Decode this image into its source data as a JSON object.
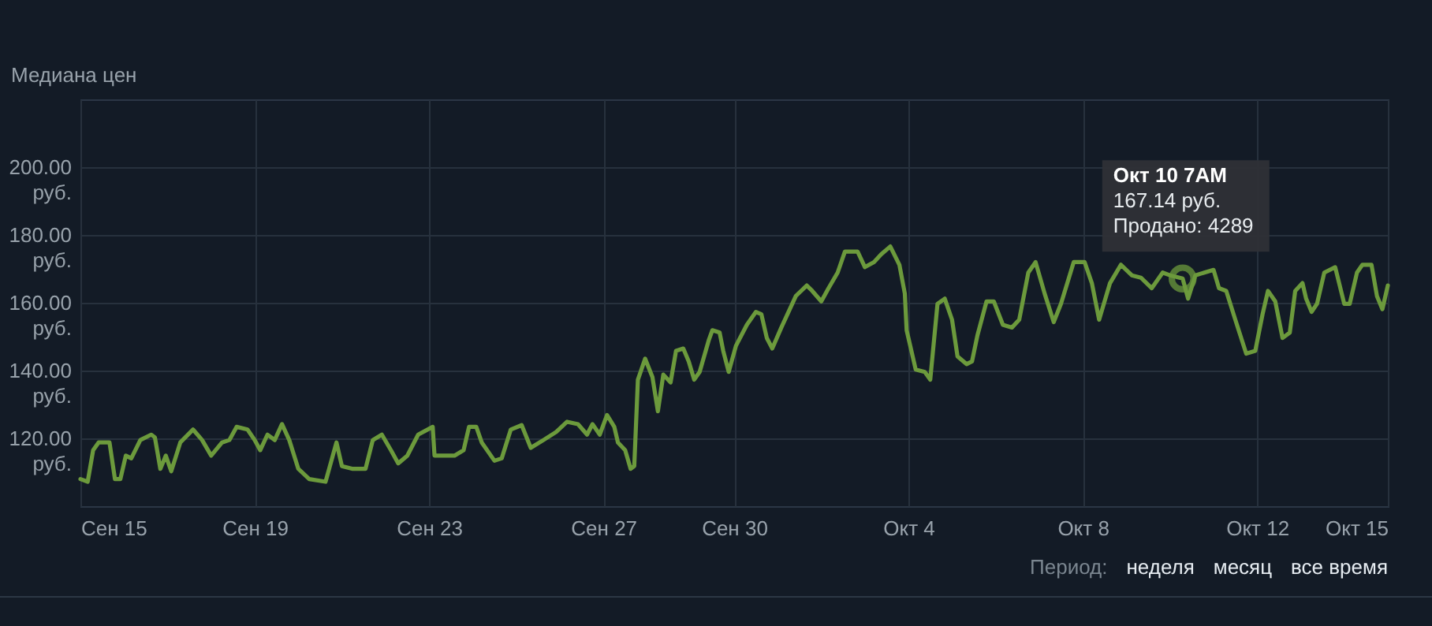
{
  "chart_data": {
    "type": "line",
    "title": "Медиана цен",
    "annotations": [
      {
        "text": "Окт 10 7AM\n167.14 руб.\nПродано: 4289",
        "x": "--10-10T07:00",
        "y": 167.14
      },
      "Период:",
      "неделя",
      "месяц",
      "все время"
    ],
    "x": [
      "--09-15T00:00",
      "--09-15T04:00",
      "--09-15T07:00",
      "--09-15T10:00",
      "--09-15T16:00",
      "--09-15T19:00",
      "--09-15T22:00",
      "--09-16T01:00",
      "--09-16T04:00",
      "--09-16T09:00",
      "--09-16T15:00",
      "--09-16T17:00",
      "--09-16T20:00",
      "--09-16T23:00",
      "--09-17T02:00",
      "--09-17T07:00",
      "--09-17T14:00",
      "--09-17T19:00",
      "--09-18T00:00",
      "--09-18T06:00",
      "--09-18T10:00",
      "--09-18T14:00",
      "--09-18T20:00",
      "--09-19T00:00",
      "--09-19T03:00",
      "--09-19T07:00",
      "--09-19T11:00",
      "--09-19T15:00",
      "--09-19T19:00",
      "--09-20T00:00",
      "--09-20T06:00",
      "--09-20T15:00",
      "--09-20T21:00",
      "--09-21T00:00",
      "--09-21T06:00",
      "--09-21T13:00",
      "--09-21T17:00",
      "--09-21T22:00",
      "--09-22T03:00",
      "--09-22T07:00",
      "--09-22T12:00",
      "--09-22T18:00",
      "--09-23T02:00",
      "--09-23T03:00",
      "--09-23T14:00",
      "--09-23T19:00",
      "--09-23T22:00",
      "--09-24T02:00",
      "--09-24T05:00",
      "--09-24T12:00",
      "--09-24T16:00",
      "--09-24T21:00",
      "--09-25T03:00",
      "--09-25T08:00",
      "--09-25T15:00",
      "--09-25T22:00",
      "--09-26T04:00",
      "--09-26T10:00",
      "--09-26T15:00",
      "--09-26T18:00",
      "--09-26T22:00",
      "--09-27T02:00",
      "--09-27T06:00",
      "--09-27T08:00",
      "--09-27T12:00",
      "--09-27T15:00",
      "--09-27T17:00",
      "--09-27T19:00",
      "--09-27T23:00",
      "--09-28T03:00",
      "--09-28T06:00",
      "--09-28T09:00",
      "--09-28T13:00",
      "--09-28T16:00",
      "--09-28T20:00",
      "--09-28T23:00",
      "--09-29T02:00",
      "--09-29T05:00",
      "--09-29T10:00",
      "--09-29T12:00",
      "--09-29T16:00",
      "--09-29T18:00",
      "--09-29T21:00",
      "--09-30T01:00",
      "--09-30T07:00",
      "--09-30T12:00",
      "--09-30T15:00",
      "--09-30T18:00",
      "--09-30T21:00",
      "--10-01T02:00",
      "--10-01T10:00",
      "--10-01T16:00",
      "--10-01T19:00",
      "--10-02T00:00",
      "--10-02T04:00",
      "--10-02T09:00",
      "--10-02T13:00",
      "--10-02T20:00",
      "--10-03T00:00",
      "--10-03T05:00",
      "--10-03T09:00",
      "--10-03T14:00",
      "--10-03T19:00",
      "--10-03T22:00",
      "--10-03T23:00",
      "--10-04T04:00",
      "--10-04T09:00",
      "--10-04T12:00",
      "--10-04T16:00",
      "--10-04T20:00",
      "--10-05T00:00",
      "--10-05T03:00",
      "--10-05T08:00",
      "--10-05T11:00",
      "--10-05T14:00",
      "--10-05T19:00",
      "--10-05T23:00",
      "--10-06T04:00",
      "--10-06T09:00",
      "--10-06T13:00",
      "--10-06T18:00",
      "--10-06T22:00",
      "--10-07T03:00",
      "--10-07T08:00",
      "--10-07T12:00",
      "--10-07T19:00",
      "--10-08T01:00",
      "--10-08T05:00",
      "--10-08T09:00",
      "--10-08T15:00",
      "--10-08T21:00",
      "--10-09T03:00",
      "--10-09T08:00",
      "--10-09T14:00",
      "--10-09T20:00",
      "--10-10T00:00",
      "--10-10T07:00",
      "--10-10T10:00",
      "--10-10T14:00",
      "--10-11T00:00",
      "--10-11T03:00",
      "--10-11T07:00",
      "--10-11T12:00",
      "--10-11T18:00",
      "--10-11T23:00",
      "--10-12T03:00",
      "--10-12T06:00",
      "--10-12T10:00",
      "--10-12T14:00",
      "--10-12T18:00",
      "--10-12T21:00",
      "--10-13T01:00",
      "--10-13T03:00",
      "--10-13T06:00",
      "--10-13T09:00",
      "--10-13T13:00",
      "--10-13T19:00",
      "--10-14T00:00",
      "--10-14T03:00",
      "--10-14T07:00",
      "--10-14T10:00",
      "--10-14T15:00",
      "--10-14T18:00",
      "--10-14T21:00",
      "--10-15T00:00"
    ],
    "series": [
      {
        "color": "#6c9a3c",
        "values": [
          108.0,
          107.2,
          116.5,
          118.8,
          118.8,
          108.0,
          108.0,
          114.9,
          114.1,
          119.5,
          121.1,
          120.3,
          111.0,
          114.9,
          110.3,
          118.8,
          122.6,
          119.5,
          114.9,
          118.8,
          119.5,
          123.4,
          122.6,
          119.5,
          116.5,
          121.1,
          119.5,
          124.2,
          119.5,
          111.0,
          108.0,
          107.2,
          118.8,
          111.8,
          111.0,
          111.0,
          119.5,
          121.1,
          116.5,
          112.6,
          114.9,
          121.1,
          123.4,
          114.9,
          114.9,
          116.5,
          123.4,
          123.4,
          118.8,
          113.4,
          114.1,
          122.6,
          123.9,
          117.2,
          119.5,
          121.9,
          124.9,
          124.2,
          121.1,
          124.2,
          121.1,
          126.9,
          123.4,
          118.8,
          116.5,
          111.0,
          111.8,
          137.3,
          143.5,
          138.1,
          128.0,
          138.8,
          136.5,
          145.8,
          146.5,
          142.7,
          137.3,
          139.6,
          148.9,
          151.9,
          151.2,
          145.8,
          139.6,
          147.3,
          153.5,
          157.3,
          156.6,
          149.6,
          146.5,
          152.7,
          162.0,
          165.1,
          163.5,
          160.4,
          164.3,
          168.9,
          175.1,
          175.1,
          170.5,
          172.0,
          174.3,
          176.6,
          171.2,
          162.7,
          151.9,
          140.3,
          139.6,
          137.3,
          159.7,
          161.2,
          155.0,
          144.2,
          141.9,
          142.7,
          150.4,
          160.4,
          160.4,
          153.5,
          152.7,
          155.0,
          168.9,
          172.0,
          162.7,
          154.3,
          159.7,
          172.0,
          172.0,
          165.8,
          155.0,
          165.8,
          171.2,
          168.1,
          167.4,
          164.3,
          168.9,
          168.1,
          167.14,
          161.2,
          168.1,
          169.7,
          164.3,
          163.5,
          155.0,
          145.0,
          145.8,
          156.6,
          163.5,
          160.4,
          149.6,
          151.2,
          163.5,
          165.8,
          161.2,
          157.3,
          159.7,
          168.9,
          170.5,
          159.7,
          159.7,
          168.9,
          171.2,
          171.2,
          162.0,
          158.1,
          165.1
        ]
      }
    ],
    "xlim": [
      "--09-15",
      "--10-15"
    ],
    "xticks": [
      {
        "value": "--09-15",
        "label": "Сен 15"
      },
      {
        "value": "--09-19",
        "label": "Сен 19"
      },
      {
        "value": "--09-23",
        "label": "Сен 23"
      },
      {
        "value": "--09-27",
        "label": "Сен 27"
      },
      {
        "value": "--09-30",
        "label": "Сен 30"
      },
      {
        "value": "--10-04",
        "label": "Окт 4"
      },
      {
        "value": "--10-08",
        "label": "Окт 8"
      },
      {
        "value": "--10-12",
        "label": "Окт 12"
      },
      {
        "value": "--10-15",
        "label": "Окт 15"
      }
    ],
    "ylim": [
      100,
      220
    ],
    "yticks": [
      {
        "value": 120,
        "label": "120.00 руб."
      },
      {
        "value": 140,
        "label": "140.00 руб."
      },
      {
        "value": 160,
        "label": "160.00 руб."
      },
      {
        "value": 180,
        "label": "180.00 руб."
      },
      {
        "value": 200,
        "label": "200.00 руб."
      }
    ],
    "grid": true
  }
}
